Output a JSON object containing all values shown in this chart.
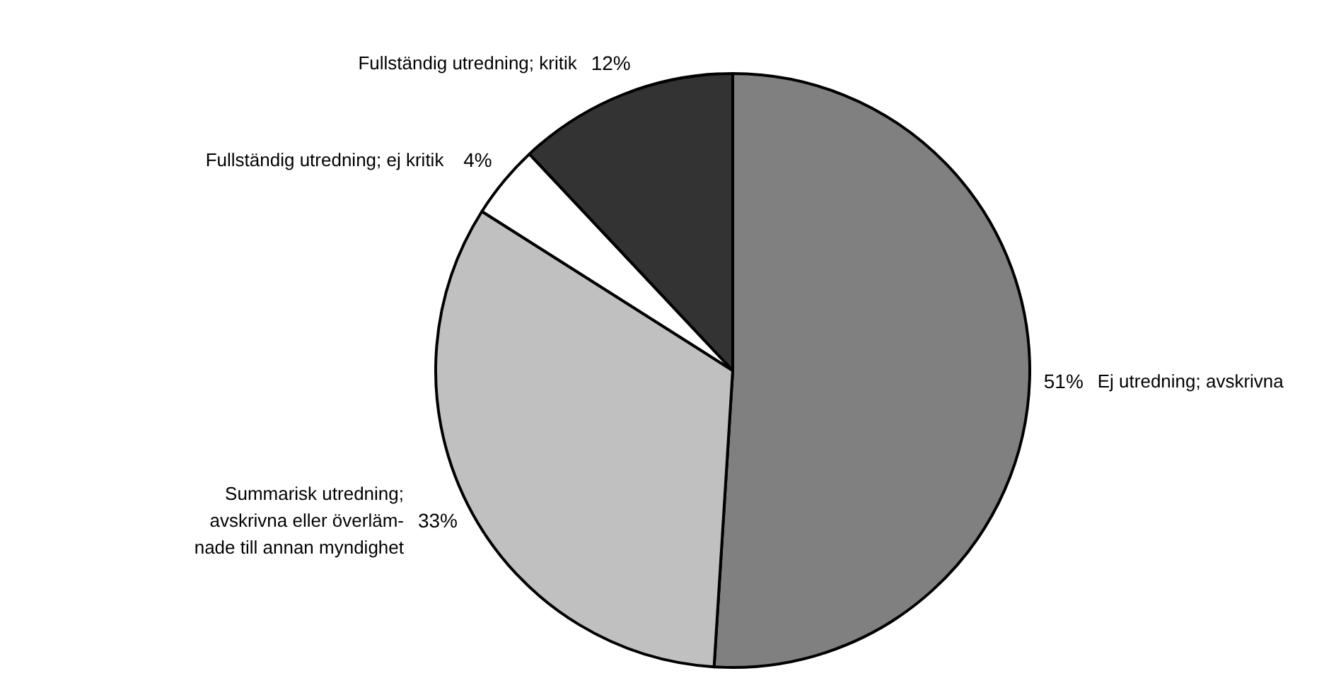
{
  "chart_data": {
    "type": "pie",
    "categories": [
      "Ej utredning; avskrivna",
      "Summarisk utredning;\navskrivna eller överläm-\nnade till annan myndighet",
      "Fullständig utredning; ej kritik",
      "Fullständig utredning; kritik"
    ],
    "values": [
      51,
      33,
      4,
      12
    ],
    "colors": [
      "#808080",
      "#c0c0c0",
      "#ffffff",
      "#333333"
    ],
    "value_labels": [
      "51%",
      "33%",
      "4%",
      "12%"
    ]
  }
}
